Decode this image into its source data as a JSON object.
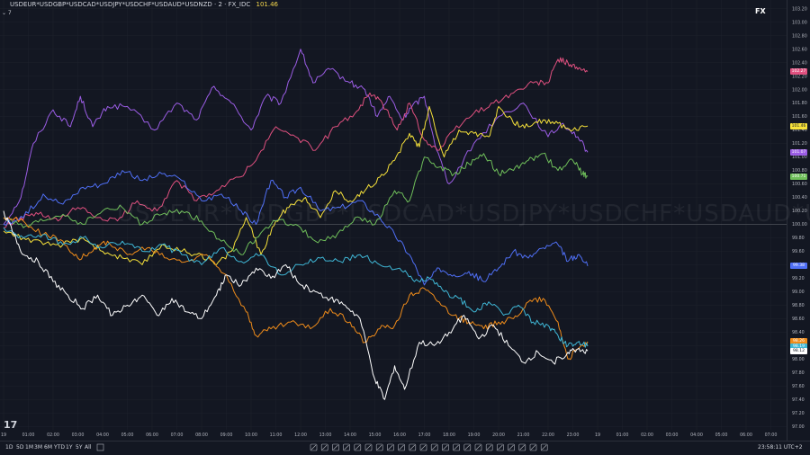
{
  "header": {
    "symbol": "USDEUR*USDGBP*USDCAD*USDJPY*USDCHF*USDAUD*USDNZD · 2 · FX_IDC",
    "value": "101.46"
  },
  "collapse_label": "⌄ 7",
  "badge": "FX",
  "watermark": "USDEUR*USDGBP*USDCAD*USDJPY*USDCHF*USDAUD*USDNZD",
  "timeframes": [
    "1D",
    "5D",
    "1M",
    "3M",
    "6M",
    "YTD",
    "1Y",
    "5Y",
    "All"
  ],
  "clock": "23:58:11 UTC+2",
  "colors": {
    "background": "#131722",
    "grid": "#1e222d",
    "white": "#ffffff",
    "purple": "#9b5de5",
    "pink": "#e0507f",
    "yellow": "#f7e23a",
    "green": "#6fbf5a",
    "blue": "#4f6ff5",
    "orange": "#f08c1a",
    "cyan": "#3fb7d6"
  },
  "chart_data": {
    "type": "line",
    "x_ticks": [
      "19",
      "01:00",
      "02:00",
      "03:00",
      "04:00",
      "05:00",
      "06:00",
      "07:00",
      "08:00",
      "09:00",
      "10:00",
      "11:00",
      "12:00",
      "13:00",
      "14:00",
      "15:00",
      "16:00",
      "17:00",
      "18:00",
      "19:00",
      "20:00",
      "21:00",
      "22:00",
      "23:00",
      "19",
      "01:00",
      "02:00",
      "03:00",
      "04:00",
      "05:00",
      "06:00",
      "07:00"
    ],
    "y_ticks": [
      "97.00",
      "97.20",
      "97.40",
      "97.60",
      "97.80",
      "98.00",
      "98.20",
      "98.40",
      "98.60",
      "98.80",
      "99.00",
      "99.20",
      "99.40",
      "99.60",
      "99.80",
      "100.00",
      "100.20",
      "100.40",
      "100.60",
      "100.80",
      "101.00",
      "101.20",
      "101.40",
      "101.60",
      "101.80",
      "102.00",
      "102.20",
      "102.40",
      "102.60",
      "102.80",
      "103.00",
      "103.20"
    ],
    "ylim": [
      96.95,
      103.25
    ],
    "x_range_hours": [
      0,
      31
    ],
    "series": [
      {
        "color_key": "purple",
        "tag": "101.07",
        "x": [
          0,
          0.7,
          1.2,
          2.0,
          2.7,
          3.1,
          3.6,
          4.2,
          5.0,
          6.1,
          7.0,
          7.8,
          8.5,
          9.2,
          10.0,
          10.6,
          11.2,
          12.0,
          12.5,
          13.2,
          14.0,
          14.6,
          15.1,
          15.6,
          16.1,
          16.5,
          17.0,
          17.5,
          18.0,
          19.0,
          20.0,
          21.0,
          22.0,
          22.6,
          23.2,
          23.6
        ],
        "y": [
          100.0,
          100.4,
          101.2,
          101.7,
          101.45,
          101.9,
          101.45,
          101.75,
          101.75,
          101.4,
          101.8,
          101.55,
          102.05,
          101.8,
          101.4,
          101.9,
          101.8,
          102.6,
          102.1,
          102.3,
          102.1,
          102.0,
          101.6,
          101.9,
          101.55,
          101.75,
          101.9,
          101.1,
          100.6,
          101.2,
          101.6,
          101.8,
          101.3,
          101.5,
          101.3,
          101.07
        ]
      },
      {
        "color_key": "pink",
        "tag": "102.27",
        "x": [
          0,
          0.7,
          1.4,
          2.2,
          3.0,
          3.8,
          4.6,
          5.4,
          6.2,
          7.0,
          7.8,
          8.6,
          9.5,
          10.2,
          11.0,
          11.8,
          12.6,
          13.4,
          14.2,
          14.8,
          15.3,
          15.9,
          16.4,
          17.0,
          17.6,
          18.2,
          19.0,
          19.8,
          20.6,
          21.4,
          22.0,
          22.4,
          22.8,
          23.2,
          23.6
        ],
        "y": [
          99.95,
          100.1,
          100.15,
          100.05,
          100.25,
          100.1,
          100.05,
          100.35,
          100.2,
          100.65,
          100.35,
          100.5,
          100.7,
          100.95,
          101.45,
          101.3,
          101.1,
          101.45,
          101.65,
          101.95,
          101.8,
          101.4,
          101.8,
          101.25,
          101.1,
          101.4,
          101.65,
          101.8,
          101.95,
          102.1,
          102.1,
          102.45,
          102.4,
          102.3,
          102.27
        ]
      },
      {
        "color_key": "yellow",
        "tag": "101.46",
        "x": [
          0,
          0.8,
          1.6,
          2.4,
          3.2,
          4.0,
          4.8,
          5.6,
          6.4,
          7.2,
          8.0,
          8.6,
          9.2,
          9.8,
          10.4,
          11.0,
          11.6,
          12.2,
          12.8,
          13.4,
          14.0,
          14.6,
          15.2,
          15.8,
          16.4,
          16.8,
          17.2,
          17.8,
          18.4,
          19.0,
          19.6,
          20.0,
          20.6,
          21.2,
          21.8,
          22.4,
          23.0,
          23.6
        ],
        "y": [
          99.9,
          99.8,
          99.7,
          99.7,
          99.8,
          99.6,
          99.5,
          99.4,
          99.7,
          99.6,
          99.55,
          99.4,
          99.6,
          100.1,
          99.55,
          100.05,
          100.3,
          100.4,
          100.1,
          100.5,
          100.35,
          100.5,
          100.7,
          100.95,
          101.35,
          101.15,
          101.75,
          101.0,
          101.4,
          101.35,
          101.3,
          101.75,
          101.5,
          101.45,
          101.55,
          101.5,
          101.4,
          101.46
        ]
      },
      {
        "color_key": "green",
        "tag": "100.71",
        "x": [
          0,
          0.8,
          1.6,
          2.4,
          3.2,
          4.0,
          4.8,
          5.6,
          6.4,
          7.2,
          8.0,
          8.8,
          9.6,
          10.2,
          11.0,
          11.8,
          12.6,
          13.4,
          14.2,
          15.0,
          15.8,
          16.4,
          17.0,
          17.6,
          18.2,
          18.8,
          19.4,
          20.0,
          20.6,
          21.2,
          21.8,
          22.4,
          23.0,
          23.4,
          23.6
        ],
        "y": [
          100.1,
          99.95,
          100.05,
          100.15,
          100.0,
          100.2,
          100.25,
          100.0,
          100.15,
          100.2,
          100.05,
          99.75,
          99.55,
          99.8,
          100.05,
          100.0,
          99.75,
          99.8,
          100.1,
          100.0,
          100.5,
          100.35,
          101.0,
          100.85,
          100.75,
          100.9,
          101.05,
          100.75,
          100.8,
          100.95,
          101.05,
          100.8,
          100.95,
          100.75,
          100.71
        ]
      },
      {
        "color_key": "blue",
        "tag": "99.38",
        "x": [
          0,
          0.8,
          1.6,
          2.4,
          3.2,
          4.0,
          4.8,
          5.6,
          6.4,
          7.2,
          8.0,
          8.8,
          9.6,
          10.2,
          10.8,
          11.4,
          12.0,
          12.8,
          13.6,
          14.4,
          15.2,
          15.8,
          16.4,
          17.0,
          17.6,
          18.2,
          18.8,
          19.4,
          20.0,
          20.6,
          21.2,
          21.8,
          22.4,
          22.8,
          23.2,
          23.6
        ],
        "y": [
          100.0,
          100.1,
          100.45,
          100.3,
          100.55,
          100.6,
          100.8,
          100.65,
          100.75,
          100.65,
          100.35,
          100.45,
          100.2,
          100.0,
          100.65,
          100.4,
          100.55,
          100.2,
          100.25,
          100.35,
          100.1,
          99.85,
          99.55,
          99.1,
          99.35,
          99.25,
          99.3,
          99.15,
          99.35,
          99.6,
          99.5,
          99.65,
          99.7,
          99.45,
          99.55,
          99.38
        ]
      },
      {
        "color_key": "orange",
        "tag": "98.26",
        "x": [
          0,
          0.8,
          1.6,
          2.4,
          3.0,
          3.6,
          4.2,
          5.0,
          5.8,
          6.6,
          7.4,
          8.2,
          9.0,
          9.8,
          10.2,
          10.8,
          11.6,
          12.4,
          13.2,
          14.0,
          14.6,
          15.2,
          15.8,
          16.4,
          17.0,
          17.6,
          18.2,
          18.8,
          19.4,
          20.0,
          20.6,
          21.2,
          21.8,
          22.4,
          22.8,
          23.2,
          23.6
        ],
        "y": [
          100.1,
          100.05,
          99.85,
          99.75,
          99.5,
          99.6,
          99.75,
          99.55,
          99.65,
          99.5,
          99.45,
          99.55,
          99.25,
          98.7,
          98.35,
          98.45,
          98.55,
          98.45,
          98.75,
          98.55,
          98.25,
          98.45,
          98.5,
          98.95,
          99.05,
          98.85,
          98.65,
          98.55,
          98.45,
          98.55,
          98.6,
          98.85,
          98.9,
          98.55,
          98.0,
          98.15,
          98.26
        ]
      },
      {
        "color_key": "cyan",
        "tag": "98.19",
        "x": [
          0,
          0.8,
          1.6,
          2.4,
          3.2,
          4.0,
          4.8,
          5.6,
          6.4,
          7.2,
          8.0,
          8.8,
          9.6,
          10.4,
          11.2,
          12.0,
          12.8,
          13.6,
          14.4,
          15.2,
          16.0,
          16.6,
          17.2,
          17.8,
          18.4,
          19.0,
          19.6,
          20.2,
          20.8,
          21.4,
          22.0,
          22.4,
          22.8,
          23.2,
          23.6
        ],
        "y": [
          99.95,
          99.8,
          99.85,
          99.7,
          99.8,
          99.65,
          99.75,
          99.6,
          99.7,
          99.55,
          99.4,
          99.65,
          99.45,
          99.55,
          99.25,
          99.4,
          99.5,
          99.45,
          99.55,
          99.4,
          99.35,
          99.15,
          99.2,
          99.0,
          98.9,
          98.7,
          98.85,
          98.65,
          98.8,
          98.55,
          98.5,
          98.35,
          98.2,
          98.25,
          98.19
        ]
      },
      {
        "color_key": "white",
        "tag": "98.12",
        "x": [
          0,
          0.4,
          0.8,
          1.4,
          2.0,
          2.6,
          3.2,
          3.8,
          4.4,
          5.0,
          5.6,
          6.2,
          6.8,
          7.4,
          8.0,
          8.6,
          9.0,
          9.6,
          10.2,
          10.8,
          11.4,
          12.0,
          12.6,
          13.2,
          13.8,
          14.4,
          15.0,
          15.4,
          15.8,
          16.2,
          16.8,
          17.4,
          18.0,
          18.6,
          19.2,
          19.8,
          20.4,
          21.0,
          21.6,
          22.2,
          22.8,
          23.2,
          23.6
        ],
        "y": [
          100.2,
          99.85,
          99.55,
          99.45,
          99.15,
          98.95,
          98.75,
          98.95,
          98.65,
          98.8,
          98.95,
          98.65,
          98.9,
          98.7,
          98.6,
          98.95,
          99.25,
          99.1,
          99.35,
          99.2,
          99.4,
          99.1,
          99.0,
          98.9,
          98.8,
          98.6,
          97.7,
          97.4,
          97.9,
          97.55,
          98.25,
          98.2,
          98.4,
          98.65,
          98.3,
          98.5,
          98.2,
          97.95,
          98.1,
          97.95,
          98.1,
          98.15,
          98.12
        ]
      }
    ]
  }
}
